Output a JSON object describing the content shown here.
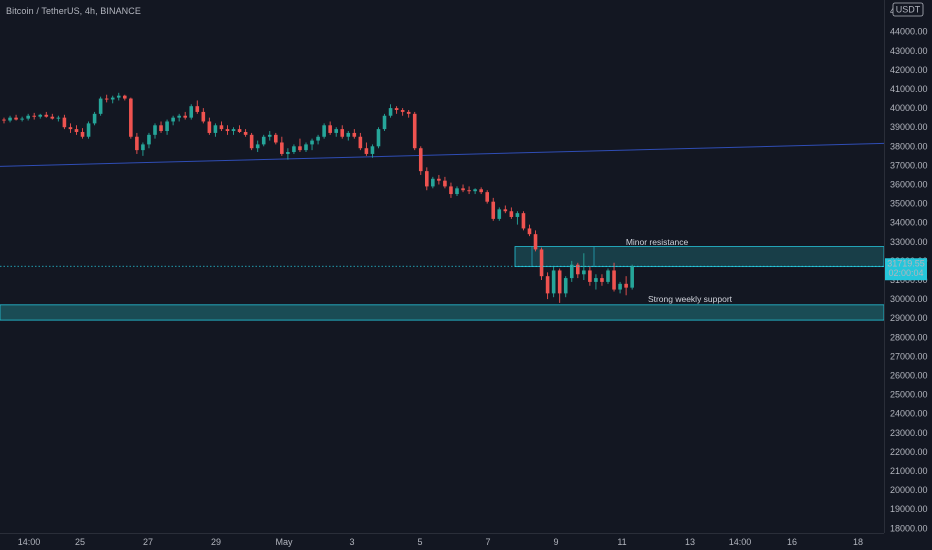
{
  "header": {
    "symbol_title": "Bitcoin / TetherUS, 4h, BINANCE",
    "currency_label": "USDT"
  },
  "price_axis": {
    "ticks": [
      "44000.00",
      "43000.00",
      "42000.00",
      "41000.00",
      "40000.00",
      "39000.00",
      "38000.00",
      "37000.00",
      "36000.00",
      "35000.00",
      "34000.00",
      "33000.00",
      "32000.00",
      "31000.00",
      "30000.00",
      "29000.00",
      "28000.00",
      "27000.00",
      "26000.00",
      "25000.00",
      "24000.00",
      "23000.00",
      "22000.00",
      "21000.00",
      "20000.00",
      "19000.00",
      "18000.00"
    ],
    "top_clipped_label": "4",
    "current_price": "31719.55",
    "countdown": "02:00:04",
    "last_price_value": 31720
  },
  "time_axis": {
    "labels": [
      "14:00",
      "25",
      "27",
      "29",
      "May",
      "3",
      "5",
      "7",
      "9",
      "11",
      "13",
      "14:00",
      "16",
      "18"
    ]
  },
  "annotations": {
    "resistance_label": "Minor resistance",
    "support_label": "Strong weekly support"
  },
  "zones": {
    "resistance": {
      "low": 31700,
      "high": 32750
    },
    "support": {
      "low": 28900,
      "high": 29700
    }
  },
  "trendline": {
    "start_price": 36950,
    "end_price": 38150
  },
  "colors": {
    "background": "#131722",
    "up": "#26a69a",
    "down": "#ef5350",
    "zone_fill": "#1d5f67",
    "zone_border": "#26c6da",
    "trendline": "#2f4db5",
    "accent": "#26c6da"
  },
  "chart_data": {
    "type": "candlestick",
    "x": [
      1,
      2,
      3,
      4,
      5,
      6,
      7,
      8,
      9,
      10,
      11,
      12,
      13,
      14,
      15,
      16,
      17,
      18,
      19,
      20,
      21,
      22,
      23,
      24,
      25,
      26,
      27,
      28,
      29,
      30,
      31,
      32,
      33,
      34,
      35,
      36,
      37,
      38,
      39,
      40,
      41,
      42,
      43,
      44,
      45,
      46,
      47,
      48,
      49,
      50,
      51,
      52,
      53,
      54,
      55,
      56,
      57,
      58,
      59,
      60,
      61,
      62,
      63,
      64,
      65,
      66,
      67,
      68,
      69,
      70,
      71,
      72,
      73,
      74,
      75,
      76,
      77,
      78,
      79,
      80,
      81,
      82,
      83,
      84,
      85,
      86,
      87,
      88,
      89,
      90,
      91,
      92,
      93,
      94,
      95,
      96,
      97,
      98,
      99,
      100,
      101,
      102,
      103,
      104,
      105
    ],
    "candles": [
      [
        39400,
        39500,
        39200,
        39350
      ],
      [
        39350,
        39600,
        39250,
        39500
      ],
      [
        39500,
        39650,
        39350,
        39400
      ],
      [
        39400,
        39550,
        39300,
        39450
      ],
      [
        39450,
        39700,
        39350,
        39600
      ],
      [
        39600,
        39750,
        39400,
        39550
      ],
      [
        39550,
        39700,
        39450,
        39650
      ],
      [
        39650,
        39800,
        39500,
        39550
      ],
      [
        39550,
        39700,
        39400,
        39450
      ],
      [
        39450,
        39600,
        39300,
        39500
      ],
      [
        39500,
        39650,
        38900,
        39000
      ],
      [
        39000,
        39200,
        38700,
        38900
      ],
      [
        38900,
        39100,
        38600,
        38750
      ],
      [
        38750,
        38950,
        38400,
        38500
      ],
      [
        38500,
        39300,
        38400,
        39200
      ],
      [
        39200,
        39800,
        39100,
        39700
      ],
      [
        39700,
        40600,
        39600,
        40500
      ],
      [
        40500,
        40700,
        40300,
        40450
      ],
      [
        40450,
        40650,
        40250,
        40550
      ],
      [
        40550,
        40800,
        40400,
        40650
      ],
      [
        40650,
        40700,
        40400,
        40500
      ],
      [
        40500,
        40550,
        38400,
        38500
      ],
      [
        38500,
        38700,
        37600,
        37800
      ],
      [
        37800,
        38200,
        37500,
        38100
      ],
      [
        38100,
        38700,
        37900,
        38600
      ],
      [
        38600,
        39200,
        38400,
        39100
      ],
      [
        39100,
        39300,
        38700,
        38800
      ],
      [
        38800,
        39400,
        38600,
        39300
      ],
      [
        39300,
        39600,
        39100,
        39500
      ],
      [
        39500,
        39700,
        39300,
        39600
      ],
      [
        39600,
        39800,
        39400,
        39500
      ],
      [
        39500,
        40200,
        39400,
        40100
      ],
      [
        40100,
        40400,
        39700,
        39800
      ],
      [
        39800,
        40000,
        39200,
        39300
      ],
      [
        39300,
        39500,
        38600,
        38700
      ],
      [
        38700,
        39200,
        38500,
        39100
      ],
      [
        39100,
        39300,
        38800,
        38900
      ],
      [
        38900,
        39100,
        38600,
        38800
      ],
      [
        38800,
        39000,
        38600,
        38900
      ],
      [
        38900,
        39100,
        38700,
        38750
      ],
      [
        38750,
        38900,
        38500,
        38600
      ],
      [
        38600,
        38700,
        37800,
        37900
      ],
      [
        37900,
        38300,
        37700,
        38100
      ],
      [
        38100,
        38600,
        38000,
        38500
      ],
      [
        38500,
        38800,
        38300,
        38600
      ],
      [
        38600,
        38700,
        38100,
        38200
      ],
      [
        38200,
        38500,
        37500,
        37600
      ],
      [
        37600,
        37900,
        37300,
        37700
      ],
      [
        37700,
        38100,
        37600,
        38000
      ],
      [
        38000,
        38400,
        37700,
        37800
      ],
      [
        37800,
        38200,
        37700,
        38100
      ],
      [
        38100,
        38400,
        37800,
        38300
      ],
      [
        38300,
        38600,
        38100,
        38500
      ],
      [
        38500,
        39200,
        38400,
        39100
      ],
      [
        39100,
        39300,
        38600,
        38700
      ],
      [
        38700,
        39000,
        38500,
        38900
      ],
      [
        38900,
        39100,
        38400,
        38500
      ],
      [
        38500,
        38800,
        38300,
        38700
      ],
      [
        38700,
        38900,
        38400,
        38500
      ],
      [
        38500,
        38700,
        37800,
        37900
      ],
      [
        37900,
        38200,
        37500,
        37600
      ],
      [
        37600,
        38100,
        37400,
        38000
      ],
      [
        38000,
        39000,
        37900,
        38900
      ],
      [
        38900,
        39700,
        38800,
        39600
      ],
      [
        39600,
        40200,
        39500,
        40000
      ],
      [
        40000,
        40100,
        39700,
        39900
      ],
      [
        39900,
        40000,
        39600,
        39800
      ],
      [
        39800,
        39900,
        39500,
        39700
      ],
      [
        39700,
        39800,
        37800,
        37900
      ],
      [
        37900,
        38000,
        36500,
        36700
      ],
      [
        36700,
        36900,
        35700,
        35900
      ],
      [
        35900,
        36400,
        35800,
        36300
      ],
      [
        36300,
        36500,
        36000,
        36200
      ],
      [
        36200,
        36400,
        35800,
        35900
      ],
      [
        35900,
        36100,
        35300,
        35500
      ],
      [
        35500,
        35900,
        35400,
        35800
      ],
      [
        35800,
        36000,
        35600,
        35700
      ],
      [
        35700,
        35900,
        35500,
        35650
      ],
      [
        35650,
        35800,
        35500,
        35750
      ],
      [
        35750,
        35850,
        35500,
        35600
      ],
      [
        35600,
        35700,
        35000,
        35100
      ],
      [
        35100,
        35300,
        34100,
        34200
      ],
      [
        34200,
        34800,
        34100,
        34700
      ],
      [
        34700,
        34900,
        34500,
        34600
      ],
      [
        34600,
        34800,
        34200,
        34300
      ],
      [
        34300,
        34600,
        33900,
        34500
      ],
      [
        34500,
        34600,
        33600,
        33700
      ],
      [
        33700,
        33900,
        33300,
        33400
      ],
      [
        33400,
        33600,
        32500,
        32600
      ],
      [
        32600,
        32700,
        31000,
        31200
      ],
      [
        31200,
        31400,
        30000,
        30300
      ],
      [
        30300,
        31700,
        30100,
        31500
      ],
      [
        31500,
        31600,
        29800,
        30300
      ],
      [
        30300,
        31200,
        30100,
        31100
      ],
      [
        31100,
        32000,
        30900,
        31800
      ],
      [
        31800,
        31900,
        31100,
        31300
      ],
      [
        31300,
        32400,
        31000,
        31500
      ],
      [
        31500,
        31700,
        30700,
        30900
      ],
      [
        30900,
        31300,
        30500,
        31100
      ],
      [
        31100,
        31300,
        30700,
        30900
      ],
      [
        30900,
        31600,
        30800,
        31500
      ],
      [
        31500,
        31900,
        30400,
        30500
      ],
      [
        30500,
        30900,
        30300,
        30800
      ],
      [
        30800,
        31200,
        30200,
        30600
      ],
      [
        30600,
        31800,
        30500,
        31720
      ]
    ],
    "ylim": [
      17700,
      45000
    ],
    "xlim": [
      0,
      170
    ]
  }
}
